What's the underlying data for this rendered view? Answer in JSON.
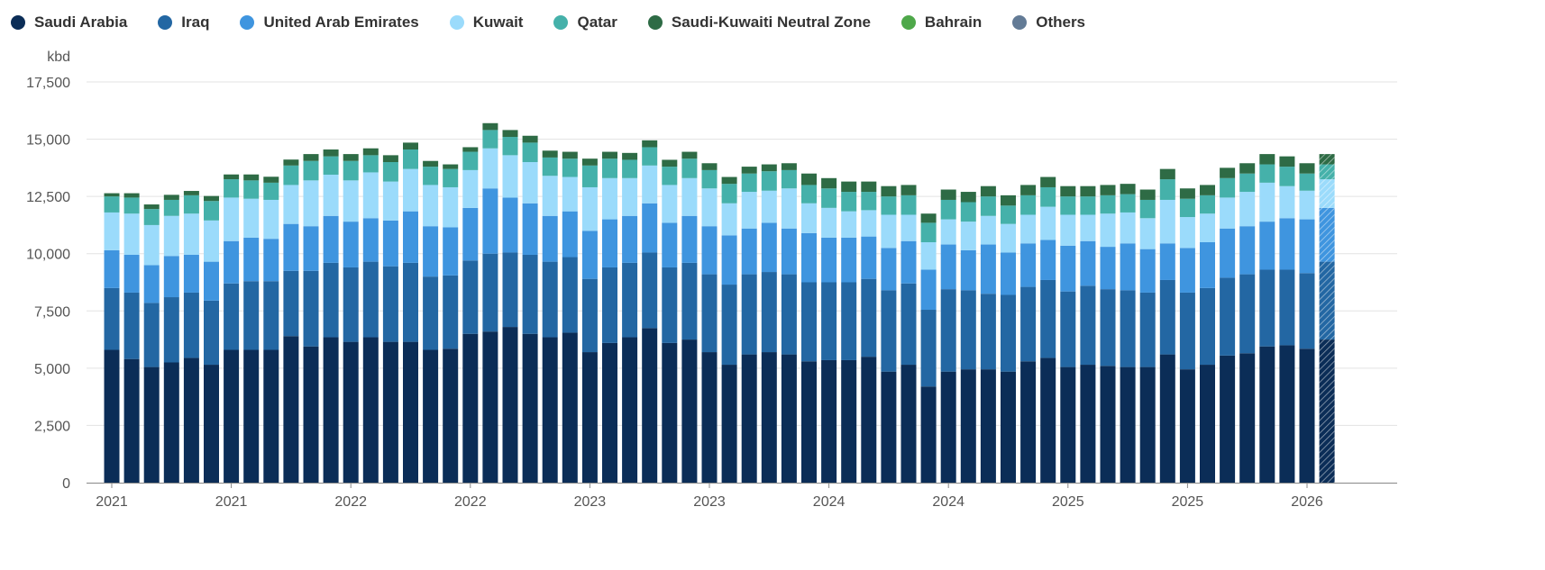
{
  "chart_data": {
    "type": "bar",
    "stacked": true,
    "ylabel": "kbd",
    "ylim": [
      0,
      17500
    ],
    "yticks": [
      0,
      2500,
      5000,
      7500,
      10000,
      12500,
      15000,
      17500
    ],
    "ytick_labels": [
      "0",
      "2,500",
      "5,000",
      "7,500",
      "10,000",
      "12,500",
      "15,000",
      "17,500"
    ],
    "x_tick_labels": [
      "2021",
      "2021",
      "2022",
      "2022",
      "2023",
      "2023",
      "2024",
      "2024",
      "2025",
      "2025",
      "2026"
    ],
    "grid": true,
    "legend_position": "top-left",
    "last_bar_forecast": true,
    "series": [
      {
        "name": "Saudi Arabia",
        "color": "#0b2d57",
        "values": [
          5800,
          5400,
          5050,
          5250,
          5450,
          5150,
          5800,
          5800,
          5800,
          6400,
          5950,
          6350,
          6150,
          6350,
          6150,
          6150,
          5800,
          5850,
          6500,
          6600,
          6800,
          6500,
          6350,
          6550,
          5700,
          6100,
          6350,
          6750,
          6100,
          6250,
          5700,
          5150,
          5600,
          5700,
          5600,
          5300,
          5350,
          5350,
          5500,
          4850,
          5150,
          4200,
          4850,
          4950,
          4950,
          4850,
          5300,
          5450,
          5050,
          5150,
          5100,
          5050,
          5050,
          5600,
          4950,
          5150,
          5550,
          5650,
          5950,
          6000,
          5850,
          6250
        ]
      },
      {
        "name": "Iraq",
        "color": "#2367a3",
        "values": [
          2700,
          2900,
          2800,
          2850,
          2850,
          2800,
          2900,
          3000,
          3000,
          2850,
          3300,
          3250,
          3250,
          3300,
          3300,
          3450,
          3200,
          3200,
          3200,
          3400,
          3250,
          3450,
          3300,
          3300,
          3200,
          3300,
          3250,
          3300,
          3300,
          3350,
          3400,
          3500,
          3500,
          3500,
          3500,
          3450,
          3400,
          3400,
          3400,
          3550,
          3550,
          3350,
          3600,
          3450,
          3300,
          3350,
          3250,
          3400,
          3300,
          3450,
          3350,
          3350,
          3250,
          3250,
          3350,
          3350,
          3400,
          3450,
          3350,
          3300,
          3300,
          3400
        ]
      },
      {
        "name": "United Arab Emirates",
        "color": "#3f95df",
        "values": [
          1650,
          1650,
          1650,
          1800,
          1650,
          1700,
          1850,
          1900,
          1850,
          2050,
          1950,
          2050,
          2000,
          1900,
          2000,
          2250,
          2200,
          2100,
          2300,
          2850,
          2400,
          2250,
          2000,
          2000,
          2100,
          2100,
          2050,
          2150,
          1950,
          2050,
          2100,
          2150,
          2000,
          2150,
          2000,
          2150,
          1950,
          1950,
          1850,
          1850,
          1850,
          1750,
          1950,
          1750,
          2150,
          1850,
          1900,
          1750,
          2000,
          1950,
          1850,
          2050,
          1900,
          1600,
          1950,
          2000,
          2150,
          2100,
          2100,
          2250,
          2350,
          2350
        ]
      },
      {
        "name": "Kuwait",
        "color": "#9bdbfb",
        "values": [
          1650,
          1800,
          1750,
          1750,
          1800,
          1800,
          1900,
          1700,
          1700,
          1700,
          2000,
          1800,
          1800,
          2000,
          1700,
          1850,
          1800,
          1750,
          1650,
          1750,
          1850,
          1800,
          1750,
          1500,
          1900,
          1800,
          1650,
          1650,
          1650,
          1650,
          1650,
          1400,
          1600,
          1400,
          1750,
          1300,
          1300,
          1150,
          1150,
          1450,
          1150,
          1200,
          1100,
          1250,
          1250,
          1250,
          1250,
          1450,
          1350,
          1150,
          1450,
          1350,
          1350,
          1900,
          1350,
          1250,
          1350,
          1500,
          1700,
          1400,
          1250,
          1250
        ]
      },
      {
        "name": "Qatar",
        "color": "#45b1aa",
        "values": [
          700,
          700,
          700,
          700,
          800,
          850,
          800,
          800,
          750,
          850,
          850,
          800,
          850,
          750,
          850,
          850,
          800,
          800,
          800,
          800,
          800,
          850,
          800,
          800,
          950,
          850,
          800,
          800,
          800,
          850,
          800,
          850,
          800,
          850,
          800,
          800,
          850,
          850,
          800,
          800,
          850,
          850,
          850,
          850,
          850,
          800,
          850,
          850,
          800,
          800,
          800,
          800,
          800,
          900,
          800,
          800,
          850,
          800,
          800,
          850,
          750,
          650
        ]
      },
      {
        "name": "Saudi-Kuwaiti Neutral Zone",
        "color": "#2e6b45",
        "values": [
          140,
          190,
          200,
          220,
          190,
          220,
          210,
          260,
          260,
          260,
          300,
          300,
          300,
          300,
          300,
          300,
          250,
          200,
          200,
          300,
          300,
          300,
          300,
          300,
          300,
          300,
          300,
          300,
          300,
          300,
          300,
          300,
          300,
          300,
          300,
          500,
          450,
          450,
          450,
          450,
          450,
          400,
          450,
          450,
          450,
          450,
          450,
          450,
          450,
          450,
          450,
          450,
          450,
          450,
          450,
          450,
          450,
          450,
          450,
          450,
          450,
          450
        ]
      },
      {
        "name": "Bahrain",
        "color": "#4ea84a",
        "values": [
          0,
          0,
          0,
          0,
          0,
          0,
          0,
          0,
          0,
          0,
          0,
          0,
          0,
          0,
          0,
          0,
          0,
          0,
          0,
          0,
          0,
          0,
          0,
          0,
          0,
          0,
          0,
          0,
          0,
          0,
          0,
          0,
          0,
          0,
          0,
          0,
          0,
          0,
          0,
          0,
          0,
          0,
          0,
          0,
          0,
          0,
          0,
          0,
          0,
          0,
          0,
          0,
          0,
          0,
          0,
          0,
          0,
          0,
          0,
          0,
          0,
          0
        ]
      },
      {
        "name": "Others",
        "color": "#637b96",
        "values": [
          0,
          0,
          0,
          0,
          0,
          0,
          0,
          0,
          0,
          0,
          0,
          0,
          0,
          0,
          0,
          0,
          0,
          0,
          0,
          0,
          0,
          0,
          0,
          0,
          0,
          0,
          0,
          0,
          0,
          0,
          0,
          0,
          0,
          0,
          0,
          0,
          0,
          0,
          0,
          0,
          0,
          0,
          0,
          0,
          0,
          0,
          0,
          0,
          0,
          0,
          0,
          0,
          0,
          0,
          0,
          0,
          0,
          0,
          0,
          0,
          0,
          0
        ]
      }
    ]
  }
}
